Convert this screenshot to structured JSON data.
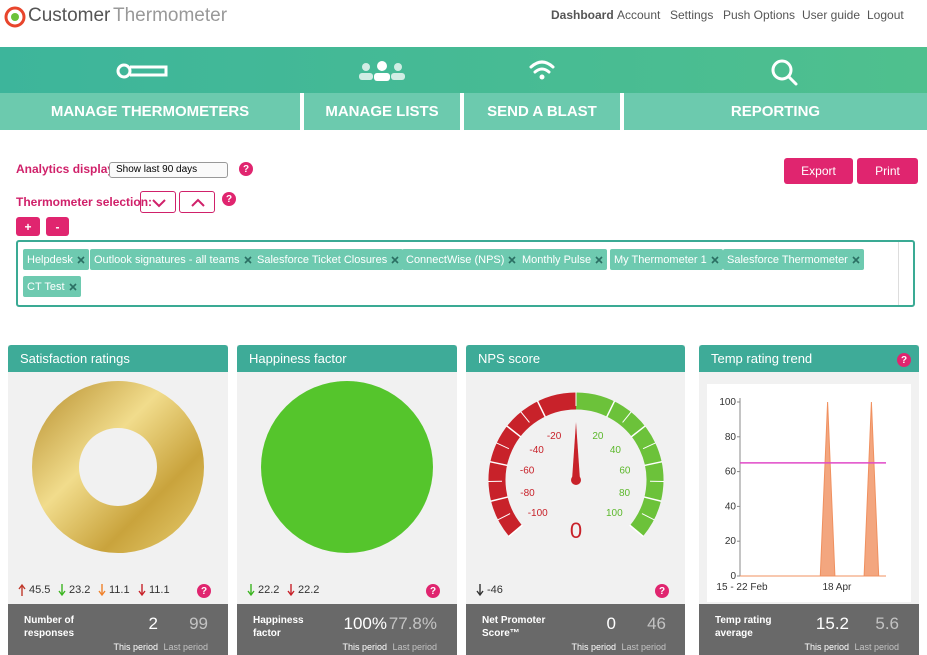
{
  "header": {
    "logo": {
      "brand": "Customer",
      "product": "Thermometer"
    },
    "nav": [
      "Dashboard",
      "Account",
      "Settings",
      "Push Options",
      "User guide",
      "Logout"
    ]
  },
  "tabs": [
    "MANAGE THERMOMETERS",
    "MANAGE LISTS",
    "SEND A BLAST",
    "REPORTING"
  ],
  "controls": {
    "analytics_label": "Analytics display:",
    "period": "Show last 90 days",
    "selection_label": "Thermometer selection:",
    "export": "Export",
    "print": "Print",
    "add": "+",
    "remove": "-",
    "help": "?"
  },
  "tags": [
    "Helpdesk",
    "Outlook signatures - all teams",
    "Salesforce Ticket Closures",
    "ConnectWise (NPS)",
    "Monthly Pulse",
    "My Thermometer 1",
    "Salesforce Thermometer",
    "CT Test"
  ],
  "period_labels": {
    "current": "This period",
    "previous": "Last period"
  },
  "panels": [
    {
      "title": "Satisfaction ratings",
      "stats": [
        45.5,
        23.2,
        11.1,
        11.1
      ],
      "metric": "Number of responses",
      "current": 2,
      "previous": 99
    },
    {
      "title": "Happiness factor",
      "stats": [
        22.2,
        22.2
      ],
      "metric": "Happiness factor",
      "current": "100%",
      "previous": "77.8%"
    },
    {
      "title": "NPS score",
      "stats": [
        -46
      ],
      "metric": "Net Promoter Score™",
      "current": 0,
      "previous": 46
    },
    {
      "title": "Temp rating trend",
      "metric": "Temp rating average",
      "current": 15.2,
      "previous": 5.6
    }
  ],
  "nps_gauge": {
    "ticks": [
      -100,
      -80,
      -60,
      -40,
      -20,
      20,
      40,
      60,
      80,
      100
    ],
    "value": 0
  },
  "trend": {
    "type": "area",
    "categories": [
      "15 - 22 Feb",
      null,
      null,
      null,
      null,
      null,
      null,
      null,
      null,
      null,
      null,
      null,
      null,
      "18 Apr",
      null,
      null,
      null,
      null,
      null,
      null,
      null
    ],
    "series": [
      {
        "color": "#f0905f",
        "values": [
          0,
          0,
          0,
          0,
          0,
          0,
          0,
          0,
          0,
          0,
          0,
          0,
          100,
          0,
          0,
          0,
          0,
          0,
          100,
          0,
          0
        ]
      },
      {
        "color": "#e04ac8",
        "values": [
          65,
          65,
          65,
          65,
          65,
          65,
          65,
          65,
          65,
          65,
          65,
          65,
          65,
          65,
          65,
          65,
          65,
          65,
          65,
          65,
          65
        ]
      }
    ],
    "ylim": [
      0,
      100
    ],
    "yticks": [
      0,
      20,
      40,
      60,
      80,
      100
    ]
  }
}
